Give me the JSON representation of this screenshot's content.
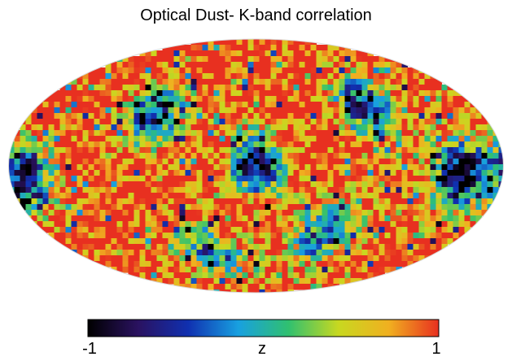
{
  "title": "Optical Dust- K-band correlation",
  "map": {
    "projection": "mollweide",
    "quantity": "z",
    "value_range": [
      -1,
      1
    ],
    "background_value": 1,
    "features": [
      {
        "kind": "anticorrelated-patch",
        "lon": 0,
        "lat": 0,
        "value": -0.9
      },
      {
        "kind": "anticorrelated-patch",
        "lon": -150,
        "lat": -5,
        "value": -1
      },
      {
        "kind": "anticorrelated-patch",
        "lon": 170,
        "lat": -5,
        "value": -0.8
      },
      {
        "kind": "anticorrelated-patch",
        "lon": 80,
        "lat": 30,
        "value": -0.5
      },
      {
        "kind": "anticorrelated-patch",
        "lon": -90,
        "lat": 35,
        "value": -0.6
      },
      {
        "kind": "anticorrelated-patch",
        "lon": 40,
        "lat": -50,
        "value": -0.5
      },
      {
        "kind": "anticorrelated-patch",
        "lon": -60,
        "lat": -40,
        "value": -0.4
      },
      {
        "kind": "correlated-region",
        "lon": 110,
        "lat": -10,
        "value": 1
      },
      {
        "kind": "correlated-region",
        "lon": 20,
        "lat": -30,
        "value": 1
      },
      {
        "kind": "correlated-region",
        "lon": -30,
        "lat": 45,
        "value": 1
      }
    ]
  },
  "colorbar": {
    "label": "z",
    "min_label": "-1",
    "max_label": "1",
    "colormap": [
      "#000000",
      "#2a1260",
      "#1030b0",
      "#18a0e0",
      "#30c070",
      "#c8d820",
      "#f0b020",
      "#e83020"
    ]
  }
}
